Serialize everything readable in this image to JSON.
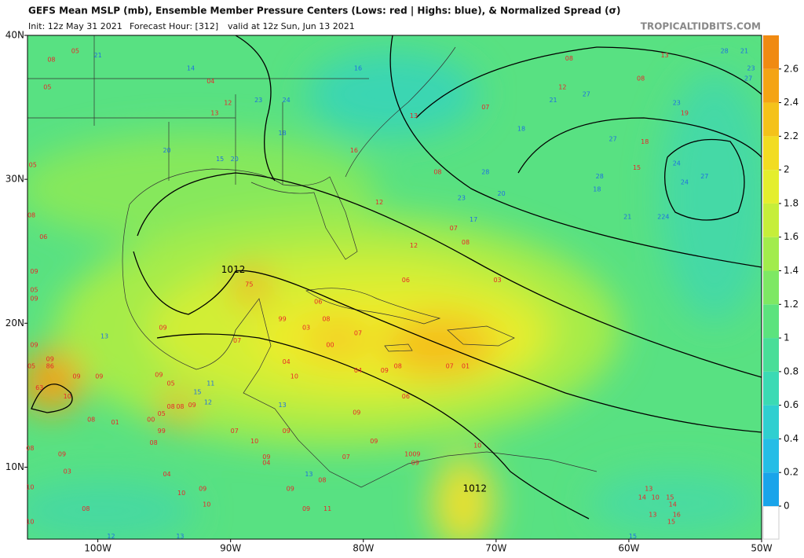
{
  "header": {
    "title": "GEFS Mean MSLP (mb), Ensemble Member Pressure Centers (Lows: red | Highs: blue), & Normalized Spread (σ)",
    "init": "Init: 12z May 31 2021",
    "forecast": "Forecast Hour: [312]",
    "valid": "valid at 12z Sun, Jun 13 2021",
    "site": "TROPICALTIDBITS.COM"
  },
  "map": {
    "lonlim": [
      -105.3,
      -50
    ],
    "latlim": [
      5,
      40
    ],
    "lon_ticks": [
      {
        "value": -100,
        "label": "100W"
      },
      {
        "value": -90,
        "label": "90W"
      },
      {
        "value": -80,
        "label": "80W"
      },
      {
        "value": -70,
        "label": "70W"
      },
      {
        "value": -60,
        "label": "60W"
      },
      {
        "value": -50,
        "label": "50W"
      }
    ],
    "lat_ticks": [
      {
        "value": 40,
        "label": "40N"
      },
      {
        "value": 30,
        "label": "30N"
      },
      {
        "value": 20,
        "label": "20N"
      },
      {
        "value": 10,
        "label": "10N"
      }
    ],
    "contour_labels": [
      {
        "label": "1012",
        "lon": -89.8,
        "lat": 23.7
      },
      {
        "label": "1012",
        "lon": -71.6,
        "lat": 8.5
      }
    ],
    "lows": {
      "color": "#e8262a",
      "centers": [
        {
          "label": "08",
          "lon": -103.5,
          "lat": 38.3
        },
        {
          "label": "05",
          "lon": -101.7,
          "lat": 38.9
        },
        {
          "label": "05",
          "lon": -103.8,
          "lat": 36.4
        },
        {
          "label": "04",
          "lon": -91.5,
          "lat": 36.8
        },
        {
          "label": "12",
          "lon": -90.2,
          "lat": 35.3
        },
        {
          "label": "13",
          "lon": -91.2,
          "lat": 34.6
        },
        {
          "label": "08",
          "lon": -64.5,
          "lat": 38.4
        },
        {
          "label": "13",
          "lon": -57.3,
          "lat": 38.6
        },
        {
          "label": "08",
          "lon": -59.1,
          "lat": 37.0
        },
        {
          "label": "12",
          "lon": -65.0,
          "lat": 36.4
        },
        {
          "label": "07",
          "lon": -70.8,
          "lat": 35.0
        },
        {
          "label": "13",
          "lon": -76.2,
          "lat": 34.4
        },
        {
          "label": "19",
          "lon": -55.8,
          "lat": 34.6
        },
        {
          "label": "16",
          "lon": -80.7,
          "lat": 32.0
        },
        {
          "label": "18",
          "lon": -58.8,
          "lat": 32.6
        },
        {
          "label": "15",
          "lon": -59.4,
          "lat": 30.8
        },
        {
          "label": "08",
          "lon": -74.4,
          "lat": 30.5
        },
        {
          "label": "12",
          "lon": -78.8,
          "lat": 28.4
        },
        {
          "label": "07",
          "lon": -73.2,
          "lat": 26.6
        },
        {
          "label": "08",
          "lon": -72.3,
          "lat": 25.6
        },
        {
          "label": "12",
          "lon": -76.2,
          "lat": 25.4
        },
        {
          "label": "06",
          "lon": -76.8,
          "lat": 23.0
        },
        {
          "label": "03",
          "lon": -69.9,
          "lat": 23.0
        },
        {
          "label": "75",
          "lon": -88.6,
          "lat": 22.7
        },
        {
          "label": "06",
          "lon": -83.4,
          "lat": 21.5
        },
        {
          "label": "99",
          "lon": -86.1,
          "lat": 20.3
        },
        {
          "label": "03",
          "lon": -84.3,
          "lat": 19.7
        },
        {
          "label": "08",
          "lon": -82.8,
          "lat": 20.3
        },
        {
          "label": "07",
          "lon": -80.4,
          "lat": 19.3
        },
        {
          "label": "00",
          "lon": -82.5,
          "lat": 18.5
        },
        {
          "label": "08",
          "lon": -77.4,
          "lat": 17.0
        },
        {
          "label": "09",
          "lon": -78.4,
          "lat": 16.7
        },
        {
          "label": "04",
          "lon": -80.4,
          "lat": 16.7
        },
        {
          "label": "07",
          "lon": -73.5,
          "lat": 17.0
        },
        {
          "label": "01",
          "lon": -72.3,
          "lat": 17.0
        },
        {
          "label": "06",
          "lon": -76.8,
          "lat": 14.9
        },
        {
          "label": "04",
          "lon": -85.8,
          "lat": 17.3
        },
        {
          "label": "10",
          "lon": -85.2,
          "lat": 16.3
        },
        {
          "label": "07",
          "lon": -89.5,
          "lat": 18.8
        },
        {
          "label": "09",
          "lon": -95.1,
          "lat": 19.7
        },
        {
          "label": "09",
          "lon": -104.8,
          "lat": 18.5
        },
        {
          "label": "09",
          "lon": -103.6,
          "lat": 17.5
        },
        {
          "label": "05",
          "lon": -105.0,
          "lat": 17.0
        },
        {
          "label": "86",
          "lon": -103.6,
          "lat": 17.0
        },
        {
          "label": "63",
          "lon": -104.4,
          "lat": 15.5
        },
        {
          "label": "10",
          "lon": -102.3,
          "lat": 14.9
        },
        {
          "label": "09",
          "lon": -101.6,
          "lat": 16.3
        },
        {
          "label": "09",
          "lon": -99.9,
          "lat": 16.3
        },
        {
          "label": "09",
          "lon": -95.4,
          "lat": 16.4
        },
        {
          "label": "05",
          "lon": -94.5,
          "lat": 15.8
        },
        {
          "label": "08",
          "lon": -94.5,
          "lat": 14.2
        },
        {
          "label": "05",
          "lon": -95.2,
          "lat": 13.7
        },
        {
          "label": "08",
          "lon": -93.8,
          "lat": 14.2
        },
        {
          "label": "09",
          "lon": -92.9,
          "lat": 14.3
        },
        {
          "label": "01",
          "lon": -98.7,
          "lat": 13.1
        },
        {
          "label": "00",
          "lon": -96.0,
          "lat": 13.3
        },
        {
          "label": "08",
          "lon": -100.5,
          "lat": 13.3
        },
        {
          "label": "99",
          "lon": -95.2,
          "lat": 12.5
        },
        {
          "label": "07",
          "lon": -89.7,
          "lat": 12.5
        },
        {
          "label": "10",
          "lon": -88.2,
          "lat": 11.8
        },
        {
          "label": "09",
          "lon": -80.5,
          "lat": 13.8
        },
        {
          "label": "09",
          "lon": -85.8,
          "lat": 12.5
        },
        {
          "label": "09",
          "lon": -79.2,
          "lat": 11.8
        },
        {
          "label": "07",
          "lon": -81.3,
          "lat": 10.7
        },
        {
          "label": "09",
          "lon": -102.7,
          "lat": 10.9
        },
        {
          "label": "08",
          "lon": -105.1,
          "lat": 11.3
        },
        {
          "label": "08",
          "lon": -95.8,
          "lat": 11.7
        },
        {
          "label": "09",
          "lon": -87.3,
          "lat": 10.7
        },
        {
          "label": "04",
          "lon": -87.3,
          "lat": 10.3
        },
        {
          "label": "08",
          "lon": -83.1,
          "lat": 9.1
        },
        {
          "label": "09",
          "lon": -85.5,
          "lat": 8.5
        },
        {
          "label": "04",
          "lon": -94.8,
          "lat": 9.5
        },
        {
          "label": "09",
          "lon": -92.1,
          "lat": 8.5
        },
        {
          "label": "10",
          "lon": -93.7,
          "lat": 8.2
        },
        {
          "label": "10",
          "lon": -91.8,
          "lat": 7.4
        },
        {
          "label": "10",
          "lon": -105.1,
          "lat": 8.6
        },
        {
          "label": "03",
          "lon": -102.3,
          "lat": 9.7
        },
        {
          "label": "10",
          "lon": -105.1,
          "lat": 6.2
        },
        {
          "label": "08",
          "lon": -100.9,
          "lat": 7.1
        },
        {
          "label": "09",
          "lon": -84.3,
          "lat": 7.1
        },
        {
          "label": "11",
          "lon": -82.7,
          "lat": 7.1
        },
        {
          "label": "1009",
          "lon": -76.3,
          "lat": 10.9
        },
        {
          "label": "09",
          "lon": -76.1,
          "lat": 10.3
        },
        {
          "label": "10",
          "lon": -71.4,
          "lat": 11.5
        },
        {
          "label": "13",
          "lon": -58.5,
          "lat": 8.5
        },
        {
          "label": "14",
          "lon": -59.0,
          "lat": 7.9
        },
        {
          "label": "10",
          "lon": -58.0,
          "lat": 7.9
        },
        {
          "label": "15",
          "lon": -56.9,
          "lat": 7.9
        },
        {
          "label": "14",
          "lon": -56.7,
          "lat": 7.4
        },
        {
          "label": "13",
          "lon": -58.2,
          "lat": 6.7
        },
        {
          "label": "16",
          "lon": -56.4,
          "lat": 6.7
        },
        {
          "label": "15",
          "lon": -56.8,
          "lat": 6.2
        },
        {
          "label": "05",
          "lon": -104.9,
          "lat": 31.0
        },
        {
          "label": "08",
          "lon": -105.0,
          "lat": 27.5
        },
        {
          "label": "06",
          "lon": -104.1,
          "lat": 26.0
        },
        {
          "label": "09",
          "lon": -104.8,
          "lat": 23.6
        },
        {
          "label": "05",
          "lon": -104.8,
          "lat": 22.3
        },
        {
          "label": "09",
          "lon": -104.8,
          "lat": 21.7
        }
      ]
    },
    "highs": {
      "color": "#1f6fe0",
      "centers": [
        {
          "label": "21",
          "lon": -100.0,
          "lat": 38.6
        },
        {
          "label": "14",
          "lon": -93.0,
          "lat": 37.7
        },
        {
          "label": "16",
          "lon": -80.4,
          "lat": 37.7
        },
        {
          "label": "23",
          "lon": -87.9,
          "lat": 35.5
        },
        {
          "label": "24",
          "lon": -85.8,
          "lat": 35.5
        },
        {
          "label": "18",
          "lon": -86.1,
          "lat": 33.2
        },
        {
          "label": "20",
          "lon": -94.8,
          "lat": 32.0
        },
        {
          "label": "15",
          "lon": -90.8,
          "lat": 31.4
        },
        {
          "label": "20",
          "lon": -89.7,
          "lat": 31.4
        },
        {
          "label": "21",
          "lon": -65.7,
          "lat": 35.5
        },
        {
          "label": "27",
          "lon": -63.2,
          "lat": 35.9
        },
        {
          "label": "28",
          "lon": -52.8,
          "lat": 38.9
        },
        {
          "label": "21",
          "lon": -51.3,
          "lat": 38.9
        },
        {
          "label": "23",
          "lon": -50.8,
          "lat": 37.7
        },
        {
          "label": "27",
          "lon": -51.0,
          "lat": 37.0
        },
        {
          "label": "23",
          "lon": -56.4,
          "lat": 35.3
        },
        {
          "label": "18",
          "lon": -68.1,
          "lat": 33.5
        },
        {
          "label": "27",
          "lon": -61.2,
          "lat": 32.8
        },
        {
          "label": "28",
          "lon": -70.8,
          "lat": 30.5
        },
        {
          "label": "20",
          "lon": -69.6,
          "lat": 29.0
        },
        {
          "label": "23",
          "lon": -72.6,
          "lat": 28.7
        },
        {
          "label": "17",
          "lon": -71.7,
          "lat": 27.2
        },
        {
          "label": "28",
          "lon": -62.2,
          "lat": 30.2
        },
        {
          "label": "18",
          "lon": -62.4,
          "lat": 29.3
        },
        {
          "label": "24",
          "lon": -56.4,
          "lat": 31.1
        },
        {
          "label": "24",
          "lon": -55.8,
          "lat": 29.8
        },
        {
          "label": "27",
          "lon": -54.3,
          "lat": 30.2
        },
        {
          "label": "21",
          "lon": -60.1,
          "lat": 27.4
        },
        {
          "label": "224",
          "lon": -57.4,
          "lat": 27.4
        },
        {
          "label": "13",
          "lon": -99.5,
          "lat": 19.1
        },
        {
          "label": "11",
          "lon": -91.5,
          "lat": 15.8
        },
        {
          "label": "15",
          "lon": -92.5,
          "lat": 15.2
        },
        {
          "label": "12",
          "lon": -91.7,
          "lat": 14.5
        },
        {
          "label": "13",
          "lon": -86.1,
          "lat": 14.3
        },
        {
          "label": "13",
          "lon": -84.1,
          "lat": 9.5
        },
        {
          "label": "12",
          "lon": -99.0,
          "lat": 5.2
        },
        {
          "label": "13",
          "lon": -93.8,
          "lat": 5.2
        },
        {
          "label": "15",
          "lon": -59.7,
          "lat": 5.2
        }
      ]
    }
  },
  "colorbar": {
    "lim": [
      0,
      2.8
    ],
    "ticks": [
      0,
      0.2,
      0.4,
      0.6,
      0.8,
      1,
      1.2,
      1.4,
      1.6,
      1.8,
      2,
      2.2,
      2.4,
      2.6
    ],
    "colors": [
      "#19a4ea",
      "#25bde6",
      "#2fcfd0",
      "#3bdab4",
      "#48de98",
      "#5ce37e",
      "#7ee864",
      "#a2ec4c",
      "#c6ee3a",
      "#e4ee2e",
      "#f2dc22",
      "#f4c21a",
      "#f4a414",
      "#f08a12"
    ]
  }
}
